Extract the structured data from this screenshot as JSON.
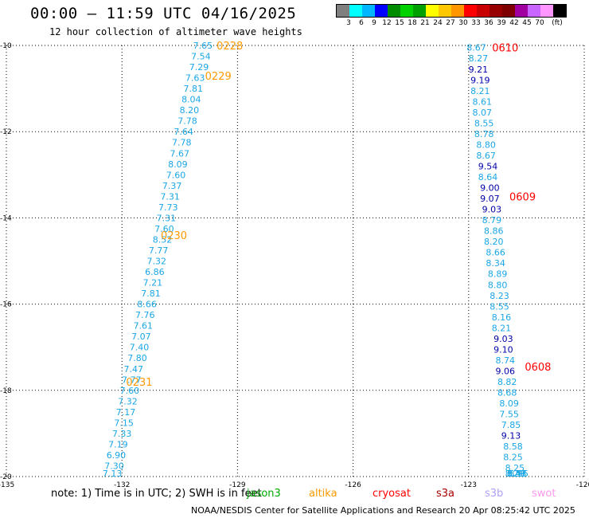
{
  "header": {
    "title": "00:00 — 11:59 UTC 04/16/2025",
    "subtitle": "12 hour collection of altimeter wave heights"
  },
  "legend": {
    "colors": [
      "#7f7f7f",
      "#00ffff",
      "#00b7ff",
      "#0000ff",
      "#008c00",
      "#00d200",
      "#00a000",
      "#ffff00",
      "#ffc800",
      "#ff9600",
      "#ff0000",
      "#c80000",
      "#960000",
      "#7f0000",
      "#a000a0",
      "#c864ff",
      "#ff96ff",
      "#000000"
    ],
    "labels": [
      "3",
      "6",
      "9",
      "12",
      "15",
      "18",
      "21",
      "24",
      "27",
      "30",
      "33",
      "36",
      "39",
      "42",
      "45",
      "70",
      "(ft)"
    ]
  },
  "axes": {
    "x_ticks": [
      "-135",
      "-132",
      "-129",
      "-126",
      "-123",
      "-120"
    ],
    "y_ticks": [
      "-10",
      "-12",
      "-14",
      "-16",
      "-18",
      "-20"
    ]
  },
  "chart_data": {
    "type": "scatter",
    "xlim": [
      -135,
      -120
    ],
    "ylim": [
      -20,
      -10
    ],
    "grid": true,
    "tracks": [
      {
        "satellite": "altika",
        "color": "#ff9900",
        "labels": [
          {
            "text": "0228",
            "lon": -129.2,
            "lat": -10.0
          },
          {
            "text": "0229",
            "lon": -129.5,
            "lat": -10.7
          },
          {
            "text": "0230",
            "lon": -130.65,
            "lat": -14.4
          },
          {
            "text": "0231",
            "lon": -131.55,
            "lat": -17.8
          }
        ],
        "points": [
          {
            "v": "7.65",
            "lon": -129.9,
            "lat": -10.0
          },
          {
            "v": "7.54",
            "lon": -129.95,
            "lat": -10.25
          },
          {
            "v": "7.29",
            "lon": -130.0,
            "lat": -10.5
          },
          {
            "v": "7.63",
            "lon": -130.1,
            "lat": -10.75
          },
          {
            "v": "7.81",
            "lon": -130.15,
            "lat": -11.0
          },
          {
            "v": "8.04",
            "lon": -130.2,
            "lat": -11.25
          },
          {
            "v": "8.20",
            "lon": -130.25,
            "lat": -11.5
          },
          {
            "v": "7.78",
            "lon": -130.3,
            "lat": -11.75
          },
          {
            "v": "7.64",
            "lon": -130.4,
            "lat": -12.0
          },
          {
            "v": "7.78",
            "lon": -130.45,
            "lat": -12.25
          },
          {
            "v": "7.67",
            "lon": -130.5,
            "lat": -12.5
          },
          {
            "v": "8.09",
            "lon": -130.55,
            "lat": -12.75
          },
          {
            "v": "7.60",
            "lon": -130.6,
            "lat": -13.0
          },
          {
            "v": "7.37",
            "lon": -130.7,
            "lat": -13.25
          },
          {
            "v": "7.31",
            "lon": -130.75,
            "lat": -13.5
          },
          {
            "v": "7.73",
            "lon": -130.8,
            "lat": -13.75
          },
          {
            "v": "7.31",
            "lon": -130.85,
            "lat": -14.0
          },
          {
            "v": "7.60",
            "lon": -130.9,
            "lat": -14.25
          },
          {
            "v": "8.52",
            "lon": -130.95,
            "lat": -14.5
          },
          {
            "v": "7.77",
            "lon": -131.05,
            "lat": -14.75
          },
          {
            "v": "7.32",
            "lon": -131.1,
            "lat": -15.0
          },
          {
            "v": "6.86",
            "lon": -131.15,
            "lat": -15.25
          },
          {
            "v": "7.21",
            "lon": -131.2,
            "lat": -15.5
          },
          {
            "v": "7.81",
            "lon": -131.25,
            "lat": -15.75
          },
          {
            "v": "8.66",
            "lon": -131.35,
            "lat": -16.0
          },
          {
            "v": "7.76",
            "lon": -131.4,
            "lat": -16.25
          },
          {
            "v": "7.61",
            "lon": -131.45,
            "lat": -16.5
          },
          {
            "v": "7.07",
            "lon": -131.5,
            "lat": -16.75
          },
          {
            "v": "7.40",
            "lon": -131.55,
            "lat": -17.0
          },
          {
            "v": "7.80",
            "lon": -131.6,
            "lat": -17.25
          },
          {
            "v": "7.47",
            "lon": -131.7,
            "lat": -17.5
          },
          {
            "v": "7.77",
            "lon": -131.75,
            "lat": -17.75
          },
          {
            "v": "7.60",
            "lon": -131.8,
            "lat": -18.0
          },
          {
            "v": "7.32",
            "lon": -131.85,
            "lat": -18.25
          },
          {
            "v": "7.17",
            "lon": -131.9,
            "lat": -18.5
          },
          {
            "v": "7.15",
            "lon": -131.95,
            "lat": -18.75
          },
          {
            "v": "7.33",
            "lon": -132.0,
            "lat": -19.0
          },
          {
            "v": "7.19",
            "lon": -132.1,
            "lat": -19.25
          },
          {
            "v": "6.90",
            "lon": -132.15,
            "lat": -19.5
          },
          {
            "v": "7.30",
            "lon": -132.2,
            "lat": -19.75
          },
          {
            "v": "7.13",
            "lon": -132.25,
            "lat": -20.0
          }
        ]
      },
      {
        "satellite": "cryosat",
        "color": "#ff0000",
        "labels": [
          {
            "text": "0610",
            "lon": -122.05,
            "lat": -10.05
          },
          {
            "text": "0609",
            "lon": -121.6,
            "lat": -13.5
          },
          {
            "text": "0608",
            "lon": -121.2,
            "lat": -17.45
          }
        ],
        "points": [
          {
            "v": "8.67",
            "lon": -122.8,
            "lat": -10.05
          },
          {
            "v": "8.27",
            "lon": -122.75,
            "lat": -10.3
          },
          {
            "v": "9.21",
            "lon": -122.75,
            "lat": -10.55
          },
          {
            "v": "9.19",
            "lon": -122.7,
            "lat": -10.8
          },
          {
            "v": "8.21",
            "lon": -122.7,
            "lat": -11.05
          },
          {
            "v": "8.61",
            "lon": -122.65,
            "lat": -11.3
          },
          {
            "v": "8.07",
            "lon": -122.65,
            "lat": -11.55
          },
          {
            "v": "8.55",
            "lon": -122.6,
            "lat": -11.8
          },
          {
            "v": "8.78",
            "lon": -122.6,
            "lat": -12.05
          },
          {
            "v": "8.80",
            "lon": -122.55,
            "lat": -12.3
          },
          {
            "v": "8.67",
            "lon": -122.55,
            "lat": -12.55
          },
          {
            "v": "9.54",
            "lon": -122.5,
            "lat": -12.8
          },
          {
            "v": "8.64",
            "lon": -122.5,
            "lat": -13.05
          },
          {
            "v": "9.00",
            "lon": -122.45,
            "lat": -13.3
          },
          {
            "v": "9.07",
            "lon": -122.45,
            "lat": -13.55
          },
          {
            "v": "9.03",
            "lon": -122.4,
            "lat": -13.8
          },
          {
            "v": "8.79",
            "lon": -122.4,
            "lat": -14.05
          },
          {
            "v": "8.86",
            "lon": -122.35,
            "lat": -14.3
          },
          {
            "v": "8.20",
            "lon": -122.35,
            "lat": -14.55
          },
          {
            "v": "8.66",
            "lon": -122.3,
            "lat": -14.8
          },
          {
            "v": "8.34",
            "lon": -122.3,
            "lat": -15.05
          },
          {
            "v": "8.89",
            "lon": -122.25,
            "lat": -15.3
          },
          {
            "v": "8.80",
            "lon": -122.25,
            "lat": -15.55
          },
          {
            "v": "8.23",
            "lon": -122.2,
            "lat": -15.8
          },
          {
            "v": "8.55",
            "lon": -122.2,
            "lat": -16.05
          },
          {
            "v": "8.16",
            "lon": -122.15,
            "lat": -16.3
          },
          {
            "v": "8.21",
            "lon": -122.15,
            "lat": -16.55
          },
          {
            "v": "9.03",
            "lon": -122.1,
            "lat": -16.8
          },
          {
            "v": "9.10",
            "lon": -122.1,
            "lat": -17.05
          },
          {
            "v": "8.74",
            "lon": -122.05,
            "lat": -17.3
          },
          {
            "v": "9.06",
            "lon": -122.05,
            "lat": -17.55
          },
          {
            "v": "8.82",
            "lon": -122.0,
            "lat": -17.8
          },
          {
            "v": "8.68",
            "lon": -122.0,
            "lat": -18.05
          },
          {
            "v": "8.09",
            "lon": -121.95,
            "lat": -18.3
          },
          {
            "v": "7.55",
            "lon": -121.95,
            "lat": -18.55
          },
          {
            "v": "7.85",
            "lon": -121.9,
            "lat": -18.8
          },
          {
            "v": "9.13",
            "lon": -121.9,
            "lat": -19.05
          },
          {
            "v": "8.58",
            "lon": -121.85,
            "lat": -19.3
          },
          {
            "v": "8.25",
            "lon": -121.85,
            "lat": -19.55
          },
          {
            "v": "8.25",
            "lon": -121.8,
            "lat": -19.8
          },
          {
            "v": "8.29",
            "lon": -121.8,
            "lat": -20.05
          },
          {
            "v": "8.57",
            "lon": -121.75,
            "lat": -20.3
          },
          {
            "v": "8.43",
            "lon": -121.75,
            "lat": -20.55
          },
          {
            "v": "8.95",
            "lon": -121.7,
            "lat": -20.8
          }
        ]
      }
    ]
  },
  "footer": {
    "note": "note:  1) Time is in UTC;  2) SWH is in feet",
    "satellites": [
      {
        "name": "jason3",
        "color": "#00aa00"
      },
      {
        "name": "altika",
        "color": "#ff9900"
      },
      {
        "name": "cryosat",
        "color": "#ff0000"
      },
      {
        "name": "s3a",
        "color": "#aa0000"
      },
      {
        "name": "s3b",
        "color": "#b0a0ff"
      },
      {
        "name": "swot",
        "color": "#ff99ee"
      }
    ],
    "credit": "NOAA/NESDIS Center for Satellite Applications and Research     20 Apr 08:25:42 UTC 2025"
  }
}
